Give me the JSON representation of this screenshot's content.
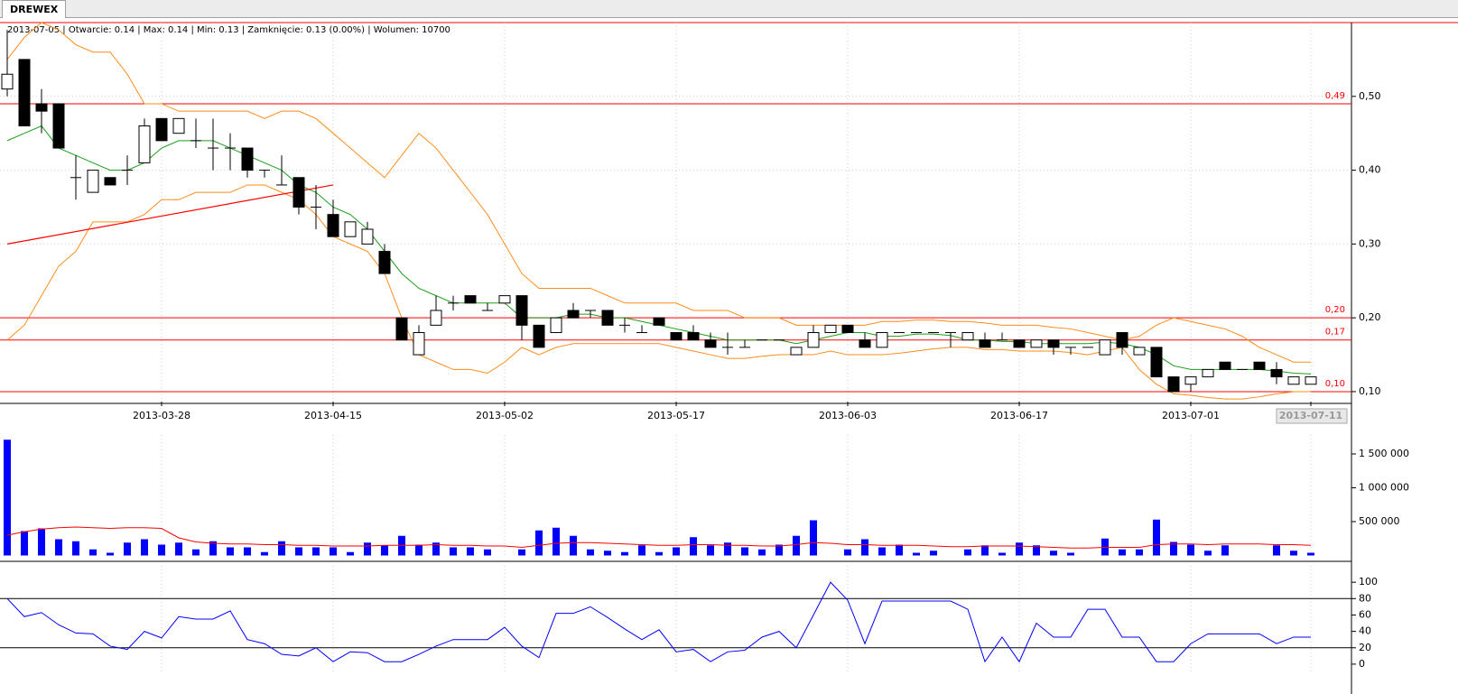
{
  "tab": "DREWEX",
  "info": "2013-07-05 | Otwarcie: 0.14 | Max: 0.14 | Min: 0.13 | Zamknięcie: 0.13 (0.00%)  | Wolumen: 10700",
  "chart_data": [
    {
      "type": "candlestick",
      "categories": [
        null,
        null,
        null,
        null,
        null,
        null,
        null,
        null,
        null,
        "2013-03-28",
        null,
        null,
        null,
        null,
        null,
        null,
        null,
        null,
        null,
        "2013-04-15",
        null,
        null,
        null,
        null,
        null,
        null,
        null,
        null,
        null,
        "2013-05-02",
        null,
        null,
        null,
        null,
        null,
        null,
        null,
        null,
        null,
        "2013-05-17",
        null,
        null,
        null,
        null,
        null,
        null,
        null,
        null,
        null,
        "2013-06-03",
        null,
        null,
        null,
        null,
        null,
        null,
        null,
        null,
        null,
        "2013-06-17",
        null,
        null,
        null,
        null,
        null,
        null,
        null,
        null,
        null,
        "2013-07-01",
        null,
        null,
        null,
        null,
        null,
        null,
        "2013-07-11"
      ],
      "open": [
        0.51,
        0.55,
        0.49,
        0.49,
        0.39,
        0.37,
        0.39,
        0.4,
        0.41,
        0.47,
        0.45,
        0.44,
        0.43,
        0.43,
        0.43,
        0.4,
        0.38,
        0.39,
        0.35,
        0.34,
        0.31,
        0.3,
        0.29,
        0.2,
        0.15,
        0.19,
        0.22,
        0.23,
        0.21,
        0.22,
        0.23,
        0.19,
        0.18,
        0.21,
        0.21,
        0.21,
        0.19,
        0.18,
        0.2,
        0.18,
        0.18,
        0.17,
        0.16,
        0.16,
        0.17,
        0.17,
        0.15,
        0.16,
        0.18,
        0.19,
        0.17,
        0.16,
        0.18,
        0.18,
        0.18,
        0.18,
        0.17,
        0.17,
        0.17,
        0.17,
        0.16,
        0.17,
        0.16,
        0.16,
        0.15,
        0.18,
        0.15,
        0.16,
        0.12,
        0.11,
        0.12,
        0.14,
        0.13,
        0.14,
        0.13,
        0.11,
        0.11
      ],
      "high": [
        0.59,
        0.55,
        0.51,
        0.49,
        0.42,
        0.4,
        0.39,
        0.42,
        0.47,
        0.47,
        0.47,
        0.47,
        0.47,
        0.45,
        0.43,
        0.4,
        0.42,
        0.39,
        0.38,
        0.36,
        0.33,
        0.33,
        0.3,
        0.2,
        0.19,
        0.23,
        0.23,
        0.23,
        0.22,
        0.23,
        0.23,
        0.19,
        0.2,
        0.22,
        0.21,
        0.21,
        0.2,
        0.19,
        0.2,
        0.18,
        0.19,
        0.18,
        0.18,
        0.17,
        0.17,
        0.17,
        0.16,
        0.19,
        0.19,
        0.19,
        0.18,
        0.18,
        0.18,
        0.18,
        0.18,
        0.18,
        0.18,
        0.18,
        0.18,
        0.17,
        0.17,
        0.17,
        0.16,
        0.16,
        0.17,
        0.18,
        0.16,
        0.16,
        0.12,
        0.12,
        0.13,
        0.14,
        0.13,
        0.14,
        0.14,
        0.12,
        0.12
      ],
      "low": [
        0.5,
        0.46,
        0.45,
        0.43,
        0.36,
        0.37,
        0.38,
        0.38,
        0.41,
        0.44,
        0.45,
        0.43,
        0.4,
        0.4,
        0.39,
        0.39,
        0.38,
        0.34,
        0.32,
        0.31,
        0.31,
        0.3,
        0.26,
        0.17,
        0.15,
        0.19,
        0.21,
        0.22,
        0.21,
        0.22,
        0.17,
        0.16,
        0.18,
        0.2,
        0.2,
        0.19,
        0.18,
        0.18,
        0.19,
        0.17,
        0.17,
        0.16,
        0.15,
        0.16,
        0.17,
        0.17,
        0.15,
        0.16,
        0.18,
        0.18,
        0.16,
        0.16,
        0.18,
        0.18,
        0.18,
        0.16,
        0.17,
        0.16,
        0.17,
        0.16,
        0.16,
        0.15,
        0.15,
        0.16,
        0.15,
        0.15,
        0.15,
        0.12,
        0.1,
        0.1,
        0.12,
        0.13,
        0.13,
        0.13,
        0.11,
        0.11,
        0.11
      ],
      "close": [
        0.53,
        0.46,
        0.48,
        0.43,
        0.39,
        0.4,
        0.38,
        0.4,
        0.46,
        0.44,
        0.47,
        0.44,
        0.43,
        0.43,
        0.4,
        0.4,
        0.38,
        0.35,
        0.35,
        0.31,
        0.33,
        0.32,
        0.26,
        0.17,
        0.18,
        0.21,
        0.22,
        0.22,
        0.21,
        0.23,
        0.19,
        0.16,
        0.2,
        0.2,
        0.21,
        0.19,
        0.19,
        0.18,
        0.19,
        0.17,
        0.17,
        0.16,
        0.16,
        0.16,
        0.17,
        0.17,
        0.16,
        0.18,
        0.19,
        0.18,
        0.16,
        0.18,
        0.18,
        0.18,
        0.18,
        0.18,
        0.18,
        0.16,
        0.17,
        0.16,
        0.17,
        0.16,
        0.16,
        0.16,
        0.17,
        0.16,
        0.16,
        0.12,
        0.1,
        0.12,
        0.13,
        0.13,
        0.13,
        0.13,
        0.12,
        0.12,
        0.12
      ],
      "up_color": "#ffffff",
      "down_color": "#000000",
      "series": [
        {
          "color": "#ff8c1a",
          "values": [
            0.55,
            0.58,
            0.6,
            0.59,
            0.57,
            0.56,
            0.56,
            0.53,
            0.49,
            0.49,
            0.48,
            0.48,
            0.48,
            0.48,
            0.48,
            0.47,
            0.48,
            0.48,
            0.47,
            0.45,
            0.43,
            0.41,
            0.39,
            0.42,
            0.45,
            0.43,
            0.4,
            0.37,
            0.34,
            0.3,
            0.26,
            0.24,
            0.24,
            0.24,
            0.24,
            0.23,
            0.22,
            0.22,
            0.22,
            0.22,
            0.21,
            0.21,
            0.21,
            0.2,
            0.2,
            0.2,
            0.19,
            0.19,
            0.19,
            0.19,
            0.19,
            0.195,
            0.195,
            0.197,
            0.197,
            0.195,
            0.195,
            0.193,
            0.19,
            0.19,
            0.19,
            0.187,
            0.185,
            0.18,
            0.175,
            0.17,
            0.175,
            0.19,
            0.2,
            0.195,
            0.19,
            0.185,
            0.175,
            0.16,
            0.15,
            0.14,
            0.14
          ]
        },
        {
          "color": "#ff8c1a",
          "values": [
            0.17,
            0.19,
            0.23,
            0.27,
            0.29,
            0.33,
            0.33,
            0.33,
            0.34,
            0.36,
            0.36,
            0.37,
            0.37,
            0.37,
            0.38,
            0.38,
            0.37,
            0.36,
            0.34,
            0.31,
            0.3,
            0.29,
            0.26,
            0.2,
            0.15,
            0.14,
            0.13,
            0.13,
            0.125,
            0.14,
            0.16,
            0.15,
            0.16,
            0.165,
            0.165,
            0.165,
            0.165,
            0.165,
            0.165,
            0.16,
            0.155,
            0.15,
            0.145,
            0.145,
            0.148,
            0.15,
            0.15,
            0.15,
            0.155,
            0.15,
            0.15,
            0.15,
            0.152,
            0.155,
            0.158,
            0.16,
            0.16,
            0.157,
            0.157,
            0.155,
            0.155,
            0.155,
            0.153,
            0.15,
            0.155,
            0.16,
            0.13,
            0.11,
            0.097,
            0.095,
            0.092,
            0.09,
            0.09,
            0.093,
            0.097,
            0.1,
            0.1
          ]
        },
        {
          "color": "#1a9e1a",
          "values": [
            0.44,
            0.45,
            0.46,
            0.43,
            0.42,
            0.41,
            0.4,
            0.4,
            0.41,
            0.43,
            0.44,
            0.44,
            0.44,
            0.43,
            0.42,
            0.41,
            0.4,
            0.38,
            0.37,
            0.35,
            0.34,
            0.32,
            0.29,
            0.26,
            0.24,
            0.23,
            0.22,
            0.22,
            0.22,
            0.22,
            0.2,
            0.2,
            0.2,
            0.205,
            0.205,
            0.2,
            0.2,
            0.195,
            0.19,
            0.185,
            0.18,
            0.175,
            0.17,
            0.17,
            0.17,
            0.17,
            0.165,
            0.17,
            0.175,
            0.18,
            0.18,
            0.175,
            0.175,
            0.178,
            0.178,
            0.176,
            0.17,
            0.17,
            0.168,
            0.168,
            0.165,
            0.165,
            0.165,
            0.165,
            0.167,
            0.165,
            0.16,
            0.15,
            0.135,
            0.13,
            0.13,
            0.13,
            0.13,
            0.13,
            0.128,
            0.125,
            0.124
          ]
        }
      ],
      "trendline": {
        "color": "#ff0000",
        "x": [
          0,
          19
        ],
        "values": [
          0.3,
          0.38
        ]
      },
      "levels": [
        {
          "value": 0.49,
          "label": "0,49"
        },
        {
          "value": 0.2,
          "label": "0,20"
        },
        {
          "value": 0.17,
          "label": "0,17"
        },
        {
          "value": 0.1,
          "label": "0,10"
        }
      ],
      "level_color": "#ff0000",
      "ylim": [
        0.0865,
        0.6
      ],
      "yticks": [
        {
          "value": 0.1,
          "label": "0,10"
        },
        {
          "value": 0.2,
          "label": "0,20"
        },
        {
          "value": 0.3,
          "label": "0,30"
        },
        {
          "value": 0.4,
          "label": "0,40"
        },
        {
          "value": 0.5,
          "label": "0,50"
        }
      ],
      "grid": true
    },
    {
      "type": "bar",
      "color": "#0000ff",
      "values": [
        1710000,
        360000,
        400000,
        240000,
        210000,
        90000,
        40000,
        190000,
        240000,
        160000,
        190000,
        90000,
        210000,
        120000,
        120000,
        50000,
        210000,
        120000,
        120000,
        120000,
        50000,
        190000,
        150000,
        290000,
        160000,
        190000,
        120000,
        120000,
        90000,
        0,
        90000,
        370000,
        410000,
        290000,
        90000,
        70000,
        50000,
        150000,
        50000,
        120000,
        270000,
        150000,
        190000,
        120000,
        90000,
        160000,
        290000,
        520000,
        0,
        90000,
        240000,
        120000,
        160000,
        40000,
        70000,
        0,
        90000,
        150000,
        40000,
        190000,
        150000,
        70000,
        40000,
        0,
        250000,
        90000,
        90000,
        530000,
        200000,
        160000,
        70000,
        150000,
        0,
        0,
        150000,
        70000,
        40000
      ],
      "series": [
        {
          "color": "#ff0000",
          "values": [
            300000,
            350000,
            390000,
            410000,
            420000,
            410000,
            400000,
            410000,
            410000,
            400000,
            260000,
            200000,
            180000,
            170000,
            170000,
            160000,
            160000,
            150000,
            150000,
            140000,
            140000,
            140000,
            150000,
            150000,
            150000,
            160000,
            150000,
            150000,
            140000,
            140000,
            120000,
            150000,
            180000,
            190000,
            190000,
            180000,
            170000,
            160000,
            150000,
            150000,
            160000,
            160000,
            150000,
            150000,
            140000,
            140000,
            160000,
            190000,
            180000,
            160000,
            160000,
            150000,
            150000,
            150000,
            140000,
            130000,
            130000,
            140000,
            140000,
            140000,
            130000,
            120000,
            110000,
            110000,
            120000,
            120000,
            120000,
            160000,
            170000,
            170000,
            160000,
            170000,
            170000,
            170000,
            160000,
            160000,
            150000
          ]
        }
      ],
      "ylim": [
        -20000,
        1780000
      ],
      "yticks": [
        {
          "value": 500000,
          "label": "500 000"
        },
        {
          "value": 1000000,
          "label": "1 000 000"
        },
        {
          "value": 1500000,
          "label": "1 500 000"
        }
      ],
      "grid": true
    },
    {
      "type": "line",
      "series": [
        {
          "color": "#0000ff",
          "values": [
            80,
            58,
            63,
            48,
            38,
            37,
            22,
            18,
            40,
            32,
            58,
            55,
            55,
            65,
            30,
            25,
            12,
            10,
            20,
            3,
            15,
            14,
            3,
            3,
            12,
            22,
            30,
            30,
            30,
            45,
            22,
            8,
            62,
            62,
            70,
            57,
            43,
            30,
            42,
            15,
            18,
            3,
            15,
            17,
            33,
            40,
            20,
            60,
            100,
            78,
            25,
            77,
            77,
            77,
            77,
            77,
            67,
            3,
            33,
            3,
            50,
            33,
            33,
            67,
            67,
            33,
            33,
            3,
            3,
            25,
            37,
            37,
            37,
            37,
            25,
            33,
            33
          ]
        }
      ],
      "levels": [
        {
          "value": 20
        },
        {
          "value": 80
        }
      ],
      "ylim": [
        -10,
        120
      ],
      "yticks": [
        0,
        20,
        40,
        60,
        80,
        100
      ],
      "grid": true
    }
  ]
}
